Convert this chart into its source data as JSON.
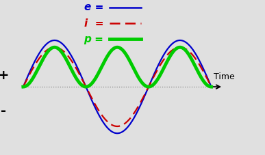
{
  "background_color": "#e0e0e0",
  "e_color": "#0000cc",
  "i_color": "#cc0000",
  "p_color": "#00cc00",
  "e_amplitude": 1.0,
  "i_amplitude": 0.85,
  "e_lw": 1.6,
  "i_lw": 1.6,
  "p_lw": 3.5,
  "xlabel": "Time",
  "plus_label": "+",
  "minus_label": "-",
  "num_cycles": 1.5,
  "ylim": [
    -1.3,
    1.8
  ],
  "legend_label_e": "e =",
  "legend_label_i": "i  =",
  "legend_label_p": "p ="
}
